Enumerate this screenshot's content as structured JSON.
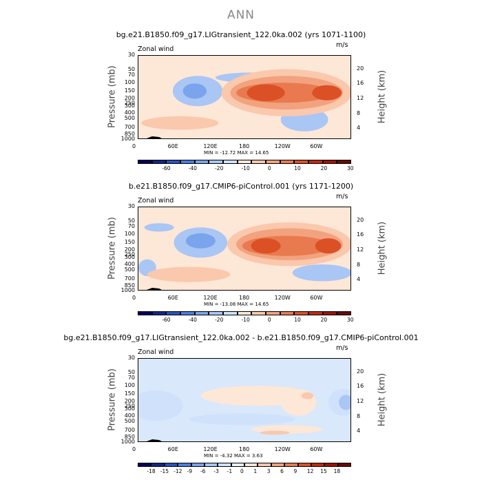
{
  "page_title": "ANN",
  "chart_data": [
    {
      "type": "heatmap",
      "title": "bg.e21.B1850.f09_g17.LIGtransient_122.0ka.002 (yrs 1071-1100)",
      "variable": "Zonal wind",
      "units": "m/s",
      "ylabel": "Pressure (mb)",
      "ylabel_right": "Height (km)",
      "x_ticks": [
        "0",
        "60E",
        "120E",
        "180",
        "120W",
        "60W"
      ],
      "y_ticks": [
        "30",
        "50",
        "70",
        "100",
        "150",
        "200",
        "250",
        "300",
        "400",
        "500",
        "700",
        "850",
        "1000"
      ],
      "height_ticks": [
        "20",
        "16",
        "12",
        "8",
        "4"
      ],
      "min_max": "MIN = -12.72   MAX = 14.65",
      "colorbar_labels": [
        "-60",
        "-40",
        "-20",
        "-10",
        "0",
        "10",
        "20",
        "30"
      ],
      "colorbar_colors": [
        "#08005a",
        "#10268a",
        "#2a52c0",
        "#4a7ee0",
        "#7aa4ec",
        "#a9c6f5",
        "#d0e2fb",
        "#fde7d7",
        "#fac8ac",
        "#f2a27e",
        "#e97a50",
        "#dc5026",
        "#c12a10",
        "#9e1406",
        "#6a0a02"
      ],
      "regions": [
        {
          "lon": 100,
          "lev": 2.1,
          "rlon": 42,
          "rlev": 0.9,
          "value": -3
        },
        {
          "lon": 95,
          "lev": 2.1,
          "rlon": 20,
          "rlev": 0.45,
          "value": -6
        },
        {
          "lon": 190,
          "lev": 1.3,
          "rlon": 60,
          "rlev": 0.3,
          "value": -3
        },
        {
          "lon": 280,
          "lev": 3.8,
          "rlon": 40,
          "rlev": 0.7,
          "value": -3
        },
        {
          "lon": 250,
          "lev": 2.2,
          "rlon": 110,
          "rlev": 1.4,
          "value": 3
        },
        {
          "lon": 250,
          "lev": 2.2,
          "rlon": 95,
          "rlev": 1.0,
          "value": 8
        },
        {
          "lon": 245,
          "lev": 2.2,
          "rlon": 80,
          "rlev": 0.6,
          "value": 12
        },
        {
          "lon": 215,
          "lev": 2.2,
          "rlon": 32,
          "rlev": 0.5,
          "value": 18
        },
        {
          "lon": 318,
          "lev": 2.2,
          "rlon": 25,
          "rlev": 0.45,
          "value": 16
        },
        {
          "lon": 70,
          "lev": 4.0,
          "rlon": 65,
          "rlev": 0.4,
          "value": 3
        }
      ]
    },
    {
      "type": "heatmap",
      "title": "b.e21.B1850.f09_g17.CMIP6-piControl.001 (yrs 1171-1200)",
      "variable": "Zonal wind",
      "units": "m/s",
      "ylabel": "Pressure (mb)",
      "ylabel_right": "Height (km)",
      "x_ticks": [
        "0",
        "60E",
        "120E",
        "180",
        "120W",
        "60W"
      ],
      "y_ticks": [
        "30",
        "50",
        "70",
        "100",
        "150",
        "200",
        "250",
        "300",
        "400",
        "500",
        "700",
        "850",
        "1000"
      ],
      "height_ticks": [
        "20",
        "16",
        "12",
        "8",
        "4"
      ],
      "min_max": "MIN = -13.08   MAX = 14.65",
      "colorbar_labels": [
        "-60",
        "-40",
        "-20",
        "-10",
        "0",
        "10",
        "20",
        "30"
      ],
      "colorbar_colors": [
        "#08005a",
        "#10268a",
        "#2a52c0",
        "#4a7ee0",
        "#7aa4ec",
        "#a9c6f5",
        "#d0e2fb",
        "#fde7d7",
        "#fac8ac",
        "#f2a27e",
        "#e97a50",
        "#dc5026",
        "#c12a10",
        "#9e1406",
        "#6a0a02"
      ],
      "regions": [
        {
          "lon": 35,
          "lev": 1.2,
          "rlon": 25,
          "rlev": 0.25,
          "value": -3
        },
        {
          "lon": 105,
          "lev": 2.1,
          "rlon": 45,
          "rlev": 0.9,
          "value": -3
        },
        {
          "lon": 105,
          "lev": 2.0,
          "rlon": 25,
          "rlev": 0.45,
          "value": -6
        },
        {
          "lon": 15,
          "lev": 3.6,
          "rlon": 15,
          "rlev": 0.5,
          "value": -3
        },
        {
          "lon": 310,
          "lev": 3.9,
          "rlon": 50,
          "rlev": 0.5,
          "value": -3
        },
        {
          "lon": 255,
          "lev": 2.2,
          "rlon": 105,
          "rlev": 1.3,
          "value": 3
        },
        {
          "lon": 255,
          "lev": 2.2,
          "rlon": 90,
          "rlev": 0.95,
          "value": 8
        },
        {
          "lon": 250,
          "lev": 2.3,
          "rlon": 75,
          "rlev": 0.6,
          "value": 12
        },
        {
          "lon": 215,
          "lev": 2.3,
          "rlon": 25,
          "rlev": 0.45,
          "value": 18
        },
        {
          "lon": 320,
          "lev": 2.3,
          "rlon": 22,
          "rlev": 0.45,
          "value": 16
        },
        {
          "lon": 85,
          "lev": 4.0,
          "rlon": 70,
          "rlev": 0.45,
          "value": 3
        }
      ]
    },
    {
      "type": "heatmap",
      "title": "bg.e21.B1850.f09_g17.LIGtransient_122.0ka.002 - b.e21.B1850.f09_g17.CMIP6-piControl.001",
      "variable": "Zonal wind",
      "units": "m/s",
      "ylabel": "Pressure (mb)",
      "ylabel_right": "Height (km)",
      "x_ticks": [
        "0",
        "60E",
        "120E",
        "180",
        "120W",
        "60W"
      ],
      "y_ticks": [
        "30",
        "50",
        "70",
        "100",
        "150",
        "200",
        "250",
        "300",
        "400",
        "500",
        "700",
        "850",
        "1000"
      ],
      "height_ticks": [
        "20",
        "16",
        "12",
        "8",
        "4"
      ],
      "min_max": "MIN = -4.32   MAX = 3.63",
      "colorbar_labels": [
        "-18",
        "-15",
        "-12",
        "-9",
        "-6",
        "-3",
        "-1",
        "0",
        "1",
        "3",
        "6",
        "9",
        "12",
        "15",
        "18"
      ],
      "colorbar_colors": [
        "#08005a",
        "#10268a",
        "#2a52c0",
        "#4a7ee0",
        "#7aa4ec",
        "#a9c6f5",
        "#d0e2fb",
        "#e8f1fc",
        "#fde7d7",
        "#fac8ac",
        "#f2a27e",
        "#e97a50",
        "#dc5026",
        "#c12a10",
        "#9e1406",
        "#6a0a02"
      ],
      "regions": [
        {
          "lon": 30,
          "lev": 2.8,
          "rlon": 45,
          "rlev": 0.9,
          "value": -1.5
        },
        {
          "lon": 10,
          "lev": 2.8,
          "rlon": 18,
          "rlev": 0.5,
          "value": -2
        },
        {
          "lon": 175,
          "lev": 3.6,
          "rlon": 90,
          "rlev": 0.35,
          "value": -1.5
        },
        {
          "lon": 345,
          "lev": 2.6,
          "rlon": 25,
          "rlev": 0.8,
          "value": -2
        },
        {
          "lon": 350,
          "lev": 2.6,
          "rlon": 12,
          "rlev": 0.45,
          "value": -4
        },
        {
          "lon": 200,
          "lev": 2.2,
          "rlon": 95,
          "rlev": 0.6,
          "value": 0.5
        },
        {
          "lon": 270,
          "lev": 2.6,
          "rlon": 30,
          "rlev": 0.8,
          "value": 0.5
        },
        {
          "lon": 285,
          "lev": 2.2,
          "rlon": 10,
          "rlev": 0.2,
          "value": 2
        },
        {
          "lon": 250,
          "lev": 4.2,
          "rlon": 60,
          "rlev": 0.25,
          "value": 0.5
        },
        {
          "lon": 230,
          "lev": 4.4,
          "rlon": 25,
          "rlev": 0.12,
          "value": 2
        }
      ]
    }
  ]
}
